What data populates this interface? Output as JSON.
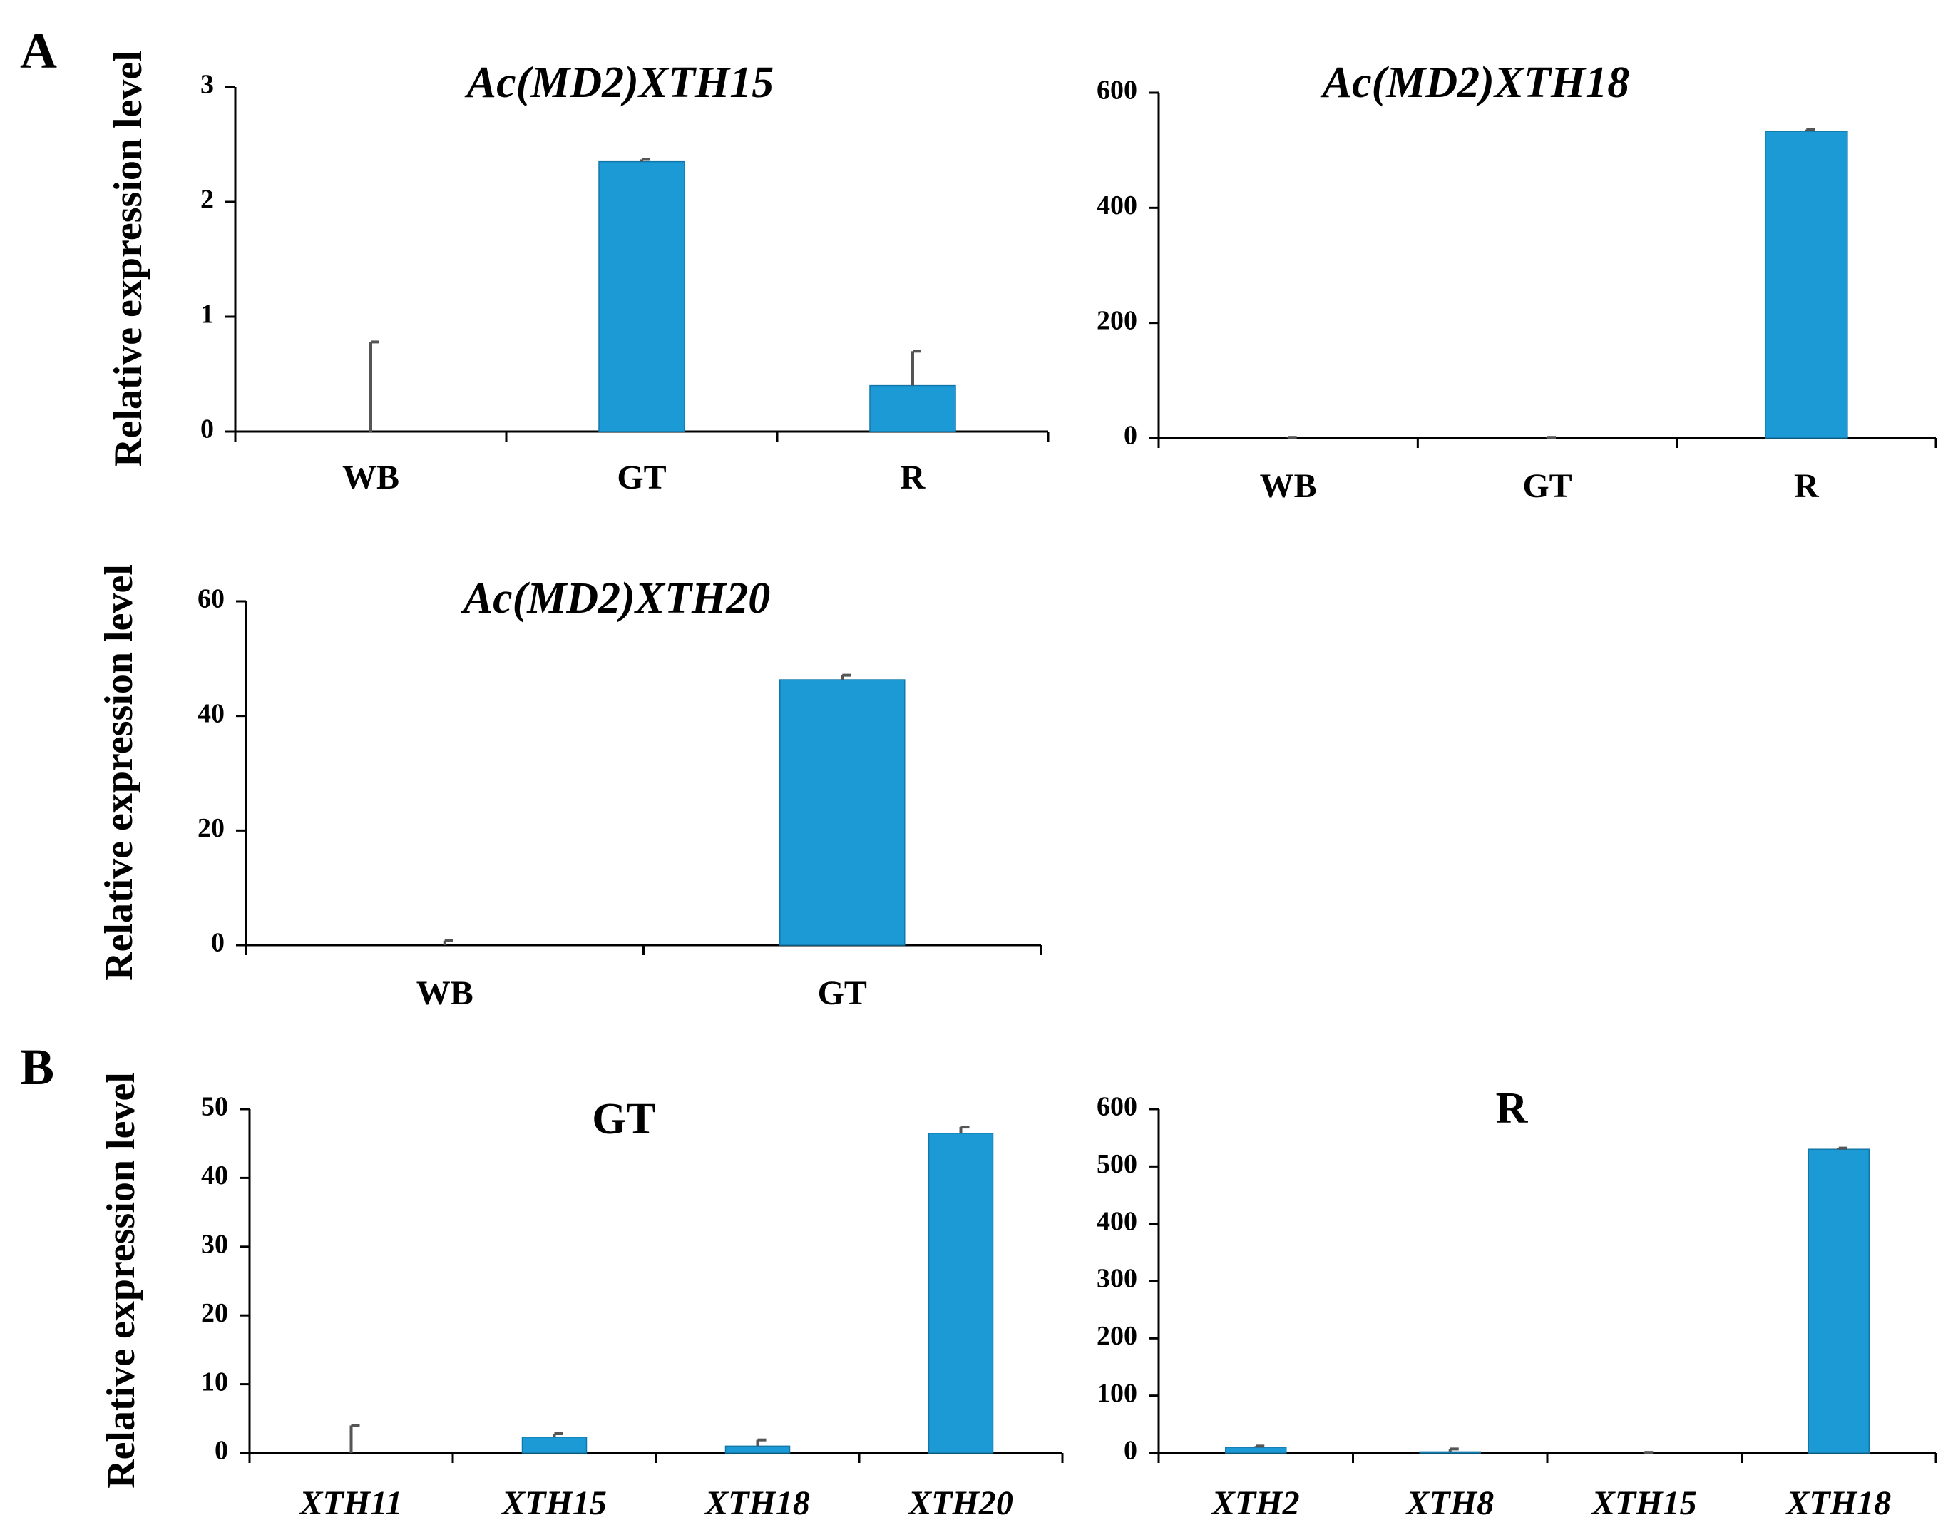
{
  "panel_labels": [
    "A",
    "B"
  ],
  "chart_data": [
    {
      "type": "bar",
      "title": "Ac(MD2)XTH15",
      "title_italic": true,
      "ylabel": "Relative expression level",
      "categories": [
        "WB",
        "GT",
        "R"
      ],
      "categories_italic": false,
      "values": [
        0,
        2.35,
        0.4
      ],
      "errors": [
        0.78,
        0.02,
        0.3
      ],
      "yticks": [
        0,
        1,
        2,
        3
      ],
      "ylim": [
        0,
        3
      ],
      "color": "#1b9ad6"
    },
    {
      "type": "bar",
      "title": "Ac(MD2)XTH18",
      "title_italic": true,
      "ylabel": "",
      "categories": [
        "WB",
        "GT",
        "R"
      ],
      "categories_italic": false,
      "values": [
        0,
        0,
        533
      ],
      "errors": [
        1,
        1,
        3
      ],
      "yticks": [
        0,
        200,
        400,
        600
      ],
      "ylim": [
        0,
        600
      ],
      "color": "#1b9ad6"
    },
    {
      "type": "bar",
      "title": "Ac(MD2)XTH20",
      "title_italic": true,
      "ylabel": "Relative expression level",
      "categories": [
        "WB",
        "GT"
      ],
      "categories_italic": false,
      "values": [
        0,
        46.3
      ],
      "errors": [
        0.8,
        0.8
      ],
      "yticks": [
        0,
        20,
        40,
        60
      ],
      "ylim": [
        0,
        60
      ],
      "color": "#1b9ad6"
    },
    {
      "type": "bar",
      "title": "GT",
      "title_italic": false,
      "ylabel": "Relative expression level",
      "categories": [
        "XTH11",
        "XTH15",
        "XTH18",
        "XTH20"
      ],
      "categories_italic": true,
      "values": [
        0,
        2.3,
        1.0,
        46.5
      ],
      "errors": [
        4.0,
        0.5,
        0.9,
        0.9
      ],
      "yticks": [
        0,
        10,
        20,
        30,
        40,
        50
      ],
      "ylim": [
        0,
        50
      ],
      "color": "#1b9ad6"
    },
    {
      "type": "bar",
      "title": "R",
      "title_italic": false,
      "ylabel": "",
      "categories": [
        "XTH2",
        "XTH8",
        "XTH15",
        "XTH18"
      ],
      "categories_italic": true,
      "values": [
        10,
        2,
        0,
        530
      ],
      "errors": [
        2,
        5,
        1,
        2
      ],
      "yticks": [
        0,
        100,
        200,
        300,
        400,
        500,
        600
      ],
      "ylim": [
        0,
        600
      ],
      "color": "#1b9ad6"
    }
  ]
}
